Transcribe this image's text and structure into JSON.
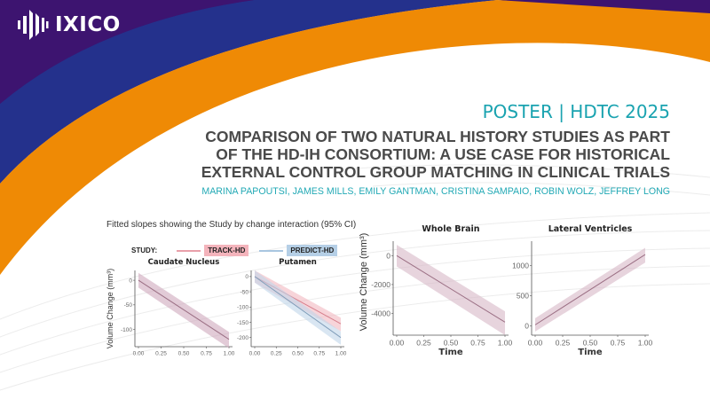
{
  "brand": {
    "name": "IXICO",
    "logo_icon": "sound-wave-bars-icon"
  },
  "colors": {
    "purple": "#3d1470",
    "blue": "#24318c",
    "orange": "#ef8a05",
    "teal": "#1aa3b0",
    "title_gray": "#4a4a4a",
    "track_hd": "#e8a0aa",
    "predict_hd": "#a9c6e0"
  },
  "header": {
    "poster_label": "POSTER | HDTC 2025",
    "title_lines": [
      "COMPARISON OF TWO NATURAL HISTORY STUDIES AS PART",
      "OF THE HD-IH CONSORTIUM: A USE CASE FOR HISTORICAL",
      "EXTERNAL CONTROL GROUP MATCHING IN CLINICAL TRIALS"
    ],
    "authors": "MARINA PAPOUTSI, JAMES MILLS, EMILY GANTMAN, CRISTINA SAMPAIO, ROBIN WOLZ, JEFFREY LONG"
  },
  "chart_data": [
    {
      "type": "line",
      "caption": "Fitted slopes showing the Study by change interaction (95% CI)",
      "legend": {
        "title": "STUDY:",
        "items": [
          {
            "name": "TRACK-HD",
            "color": "#e8a0aa",
            "bg": "#f4b4bc"
          },
          {
            "name": "PREDICT-HD",
            "color": "#a9c6e0",
            "bg": "#b5cfe6"
          }
        ],
        "position": "top"
      },
      "ylabel": "Volume Change (mm³)",
      "xlabel": "",
      "panels": [
        {
          "title": "Caudate Nucleus",
          "xlim": [
            0,
            1
          ],
          "ylim": [
            -135,
            20
          ],
          "xticks": [
            "0.00",
            "0.25",
            "0.50",
            "0.75",
            "1.00"
          ],
          "yticks": [
            0,
            -50,
            -100
          ],
          "series": [
            {
              "name": "TRACK-HD / PREDICT-HD (overlapping)",
              "x": [
                0,
                1
              ],
              "y": [
                0,
                -120
              ],
              "ci": 15,
              "color": "#9b6f84",
              "band": "#cfa9bd"
            }
          ]
        },
        {
          "title": "Putamen",
          "xlim": [
            0,
            1
          ],
          "ylim": [
            -230,
            20
          ],
          "xticks": [
            "0.00",
            "0.25",
            "0.50",
            "0.75",
            "1.00"
          ],
          "yticks": [
            0,
            -50,
            -100,
            -150,
            -200
          ],
          "series": [
            {
              "name": "TRACK-HD",
              "x": [
                0,
                1
              ],
              "y": [
                0,
                -155
              ],
              "ci": 20,
              "color": "#d67e8c",
              "band": "#f2b8c0"
            },
            {
              "name": "PREDICT-HD",
              "x": [
                0,
                1
              ],
              "y": [
                0,
                -200
              ],
              "ci": 20,
              "color": "#7f9cb8",
              "band": "#bfd6ea"
            }
          ]
        }
      ]
    },
    {
      "type": "line",
      "ylabel": "Volume Change (mm³)",
      "xlabel": "Time",
      "panels": [
        {
          "title": "Whole Brain",
          "xlim": [
            0,
            1
          ],
          "ylim": [
            -5500,
            1000
          ],
          "xticks": [
            "0.00",
            "0.25",
            "0.50",
            "0.75",
            "1.00"
          ],
          "yticks": [
            0,
            -2000,
            -4000
          ],
          "series": [
            {
              "name": "TRACK-HD / PREDICT-HD (overlapping)",
              "x": [
                0,
                1
              ],
              "y": [
                0,
                -4600
              ],
              "ci": 750,
              "color": "#9b6f84",
              "band": "#d7b7c6"
            }
          ]
        },
        {
          "title": "Lateral Ventricles",
          "xlim": [
            0,
            1
          ],
          "ylim": [
            -150,
            1400
          ],
          "xticks": [
            "0.00",
            "0.25",
            "0.50",
            "0.75",
            "1.00"
          ],
          "yticks": [
            0,
            500,
            1000
          ],
          "series": [
            {
              "name": "TRACK-HD / PREDICT-HD (overlapping)",
              "x": [
                0,
                1
              ],
              "y": [
                20,
                1180
              ],
              "ci": 110,
              "color": "#9b6f84",
              "band": "#d7b7c6"
            }
          ]
        }
      ]
    }
  ]
}
